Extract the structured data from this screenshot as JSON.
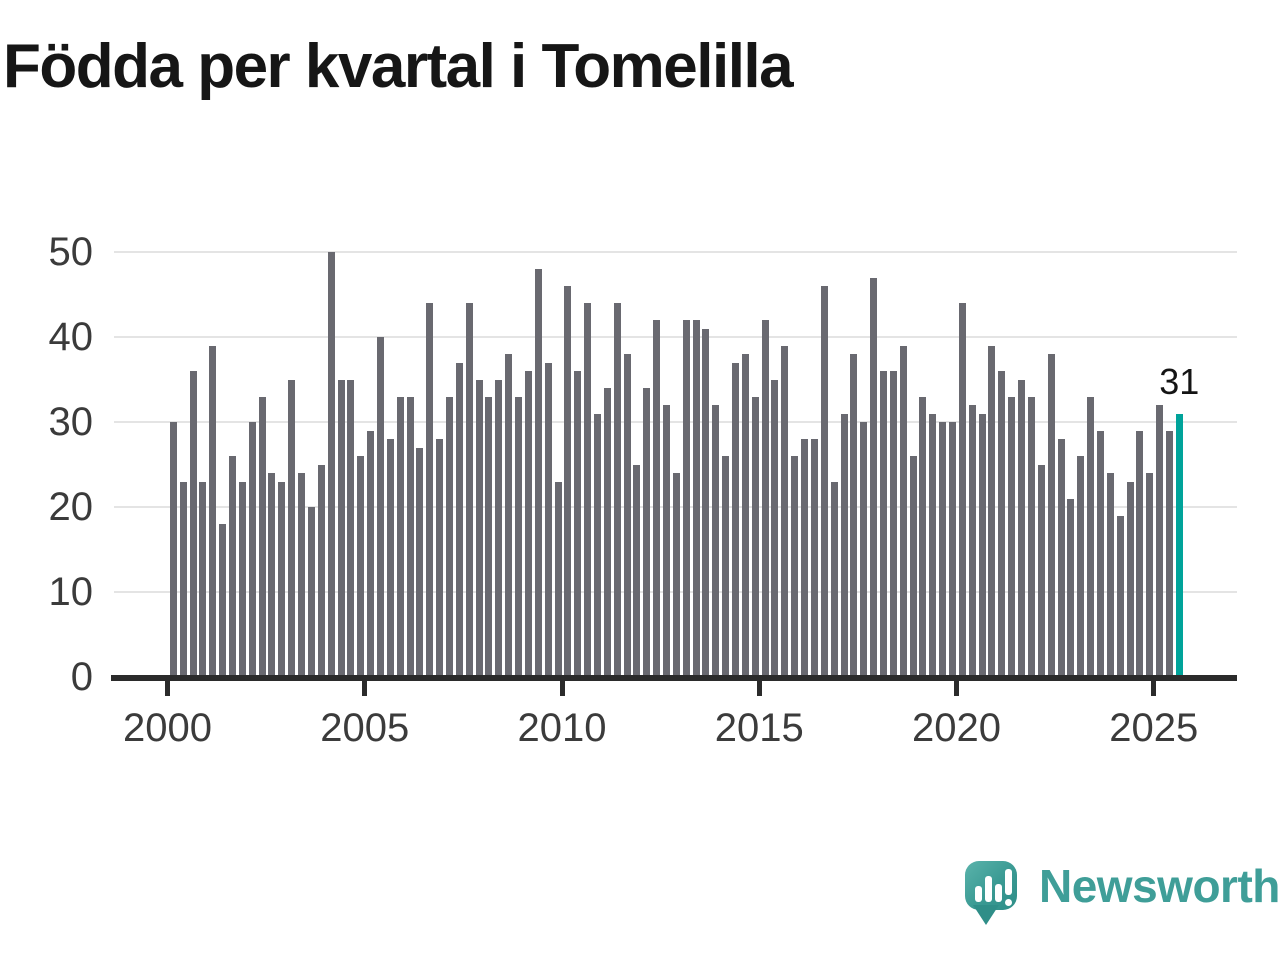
{
  "page": {
    "title": "Födda per kvartal i Tomelilla"
  },
  "branding": {
    "logo_text": "Newsworthy",
    "logo_text_color": "#3f9e98",
    "logo_bubble_color": "#3a9a93"
  },
  "chart_data": {
    "type": "bar",
    "title": "Födda per kvartal i Tomelilla",
    "xlabel": "",
    "ylabel": "",
    "grid": true,
    "legend": false,
    "ylim": [
      0,
      50
    ],
    "yticks": [
      0,
      10,
      20,
      30,
      40,
      50
    ],
    "xtick_year_labels": [
      "2000",
      "2005",
      "2010",
      "2015",
      "2020",
      "2025"
    ],
    "bar_color": "#696970",
    "highlight_color": "#00a39a",
    "highlight_index": 102,
    "annotation": {
      "text": "31",
      "index": 102
    },
    "categories": [
      "2000K1",
      "2000K2",
      "2000K3",
      "2000K4",
      "2001K1",
      "2001K2",
      "2001K3",
      "2001K4",
      "2002K1",
      "2002K2",
      "2002K3",
      "2002K4",
      "2003K1",
      "2003K2",
      "2003K3",
      "2003K4",
      "2004K1",
      "2004K2",
      "2004K3",
      "2004K4",
      "2005K1",
      "2005K2",
      "2005K3",
      "2005K4",
      "2006K1",
      "2006K2",
      "2006K3",
      "2006K4",
      "2007K1",
      "2007K2",
      "2007K3",
      "2007K4",
      "2008K1",
      "2008K2",
      "2008K3",
      "2008K4",
      "2009K1",
      "2009K2",
      "2009K3",
      "2009K4",
      "2010K1",
      "2010K2",
      "2010K3",
      "2010K4",
      "2011K1",
      "2011K2",
      "2011K3",
      "2011K4",
      "2012K1",
      "2012K2",
      "2012K3",
      "2012K4",
      "2013K1",
      "2013K2",
      "2013K3",
      "2013K4",
      "2014K1",
      "2014K2",
      "2014K3",
      "2014K4",
      "2015K1",
      "2015K2",
      "2015K3",
      "2015K4",
      "2016K1",
      "2016K2",
      "2016K3",
      "2016K4",
      "2017K1",
      "2017K2",
      "2017K3",
      "2017K4",
      "2018K1",
      "2018K2",
      "2018K3",
      "2018K4",
      "2019K1",
      "2019K2",
      "2019K3",
      "2019K4",
      "2020K1",
      "2020K2",
      "2020K3",
      "2020K4",
      "2021K1",
      "2021K2",
      "2021K3",
      "2021K4",
      "2022K1",
      "2022K2",
      "2022K3",
      "2022K4",
      "2023K1",
      "2023K2",
      "2023K3",
      "2023K4",
      "2024K1",
      "2024K2",
      "2024K3",
      "2024K4",
      "2025K1",
      "2025K2",
      "2025K3"
    ],
    "values": [
      30,
      23,
      36,
      23,
      39,
      18,
      26,
      23,
      30,
      33,
      24,
      23,
      35,
      24,
      20,
      25,
      50,
      35,
      35,
      26,
      29,
      40,
      28,
      33,
      33,
      27,
      44,
      28,
      33,
      37,
      44,
      35,
      33,
      35,
      38,
      33,
      36,
      48,
      37,
      23,
      46,
      36,
      44,
      31,
      34,
      44,
      38,
      25,
      34,
      42,
      32,
      24,
      42,
      42,
      41,
      32,
      26,
      37,
      38,
      33,
      42,
      35,
      39,
      26,
      28,
      28,
      46,
      23,
      31,
      38,
      30,
      47,
      36,
      36,
      39,
      26,
      33,
      31,
      30,
      30,
      44,
      32,
      31,
      39,
      36,
      33,
      35,
      33,
      25,
      38,
      28,
      21,
      26,
      33,
      29,
      24,
      19,
      23,
      29,
      24,
      32,
      29,
      31
    ]
  }
}
